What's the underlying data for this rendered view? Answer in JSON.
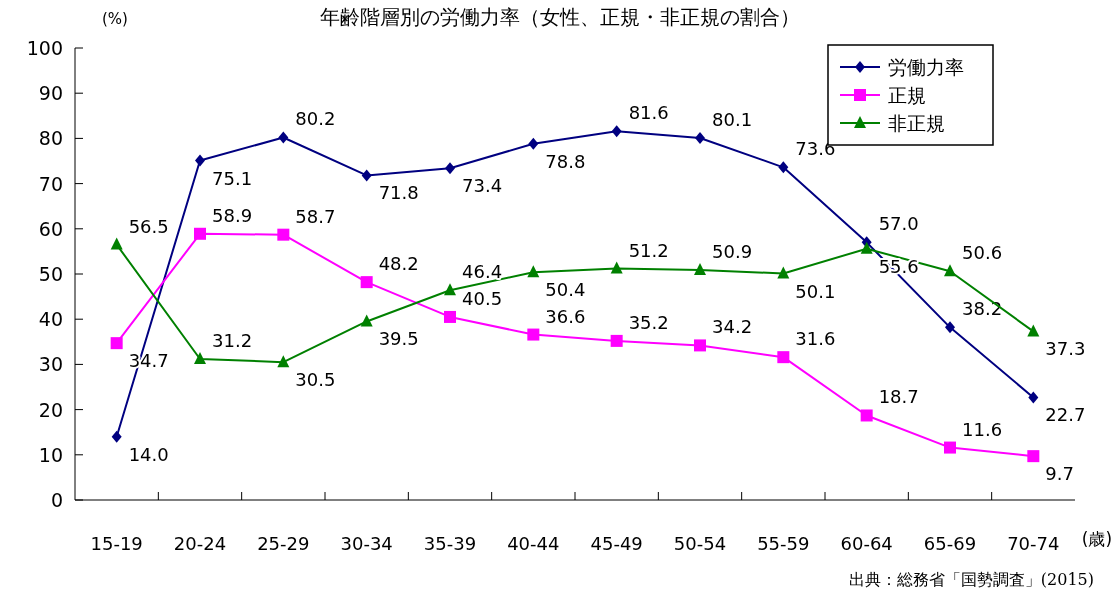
{
  "chart_data": {
    "type": "line",
    "title": "年齢階層別の労働力率（女性、正規・非正規の割合）",
    "ylabel": "(%)",
    "xlabel": "(歳)",
    "annotations": [
      "出典：総務省「国勢調査」(2015)"
    ],
    "categories": [
      "15-19",
      "20-24",
      "25-29",
      "30-34",
      "35-39",
      "40-44",
      "45-49",
      "50-54",
      "55-59",
      "60-64",
      "65-69",
      "70-74"
    ],
    "ylim": [
      0,
      100
    ],
    "yticks": [
      0,
      10,
      20,
      30,
      40,
      50,
      60,
      70,
      80,
      90,
      100
    ],
    "grid": false,
    "legend": "top right",
    "data_labels": true,
    "series": [
      {
        "name": "労働力率",
        "color": "#000080",
        "marker": "diamond",
        "values": [
          14.0,
          75.1,
          80.2,
          71.8,
          73.4,
          78.8,
          81.6,
          80.1,
          73.6,
          57.0,
          38.2,
          22.7
        ],
        "value_labels": [
          "14.0",
          "75.1",
          "80.2",
          "71.8",
          "73.4",
          "78.8",
          "81.6",
          "80.1",
          "73.6",
          "57.0",
          "38.2",
          "22.7"
        ]
      },
      {
        "name": "正規",
        "color": "#ff00ff",
        "marker": "square",
        "values": [
          34.7,
          58.9,
          58.7,
          48.2,
          40.5,
          36.6,
          35.2,
          34.2,
          31.6,
          18.7,
          11.6,
          9.7
        ],
        "value_labels": [
          "34.7",
          "58.9",
          "58.7",
          "48.2",
          "40.5",
          "36.6",
          "35.2",
          "34.2",
          "31.6",
          "18.7",
          "11.6",
          "9.7"
        ]
      },
      {
        "name": "非正規",
        "color": "#008000",
        "marker": "triangle",
        "values": [
          56.5,
          31.2,
          30.5,
          39.5,
          46.4,
          50.4,
          51.2,
          50.9,
          50.1,
          55.6,
          50.6,
          37.3
        ],
        "value_labels": [
          "56.5",
          "31.2",
          "30.5",
          "39.5",
          "46.4",
          "50.4",
          "51.2",
          "50.9",
          "50.1",
          "55.6",
          "50.6",
          "37.3"
        ]
      }
    ]
  }
}
